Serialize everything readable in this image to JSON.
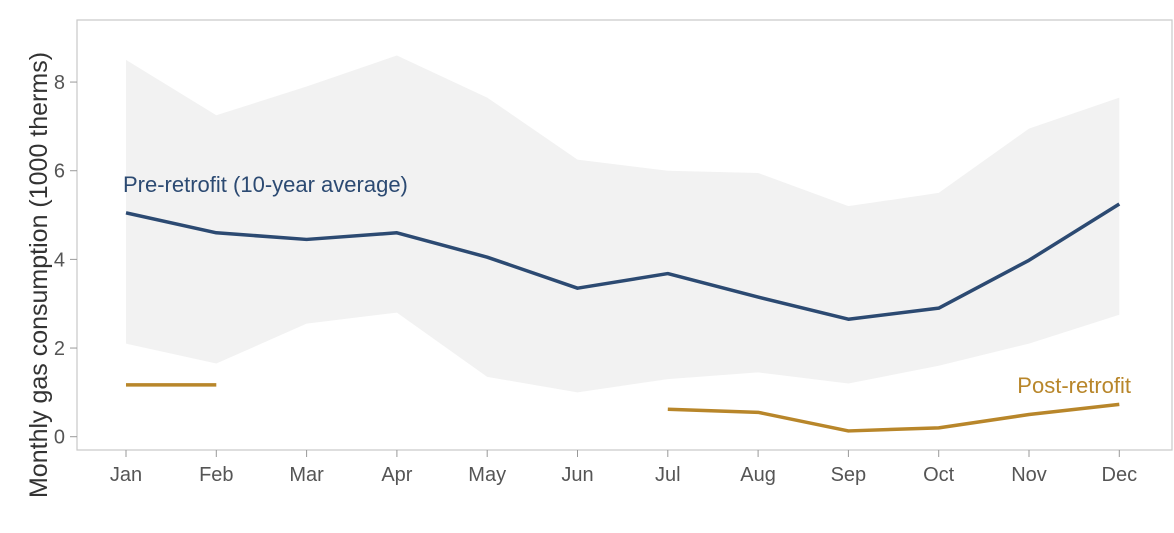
{
  "chart_data": {
    "type": "line",
    "ylabel": "Monthly gas consumption (1000 therms)",
    "xlabel": "",
    "categories": [
      "Jan",
      "Feb",
      "Mar",
      "Apr",
      "May",
      "Jun",
      "Jul",
      "Aug",
      "Sep",
      "Oct",
      "Nov",
      "Dec"
    ],
    "yticks": [
      "0",
      "2",
      "4",
      "6",
      "8"
    ],
    "ylim": [
      -0.3,
      9.4
    ],
    "grid": false,
    "band": {
      "upper": [
        8.5,
        7.25,
        7.9,
        8.6,
        7.65,
        6.25,
        6.0,
        5.95,
        5.2,
        5.5,
        6.95,
        7.65
      ],
      "lower": [
        2.1,
        1.65,
        2.55,
        2.8,
        1.35,
        1.0,
        1.3,
        1.45,
        1.2,
        1.6,
        2.1,
        2.75
      ],
      "color": "#f2f2f2"
    },
    "series": [
      {
        "name": "Pre-retrofit (10-year average)",
        "color": "#2c4a72",
        "values": [
          5.05,
          4.6,
          4.45,
          4.6,
          4.05,
          3.35,
          3.68,
          3.15,
          2.65,
          2.9,
          3.98,
          5.25
        ]
      },
      {
        "name": "Post-retrofit",
        "color": "#b8862a",
        "values": [
          1.17,
          1.17,
          null,
          null,
          null,
          null,
          0.62,
          0.55,
          0.13,
          0.2,
          0.5,
          0.73
        ]
      }
    ]
  }
}
